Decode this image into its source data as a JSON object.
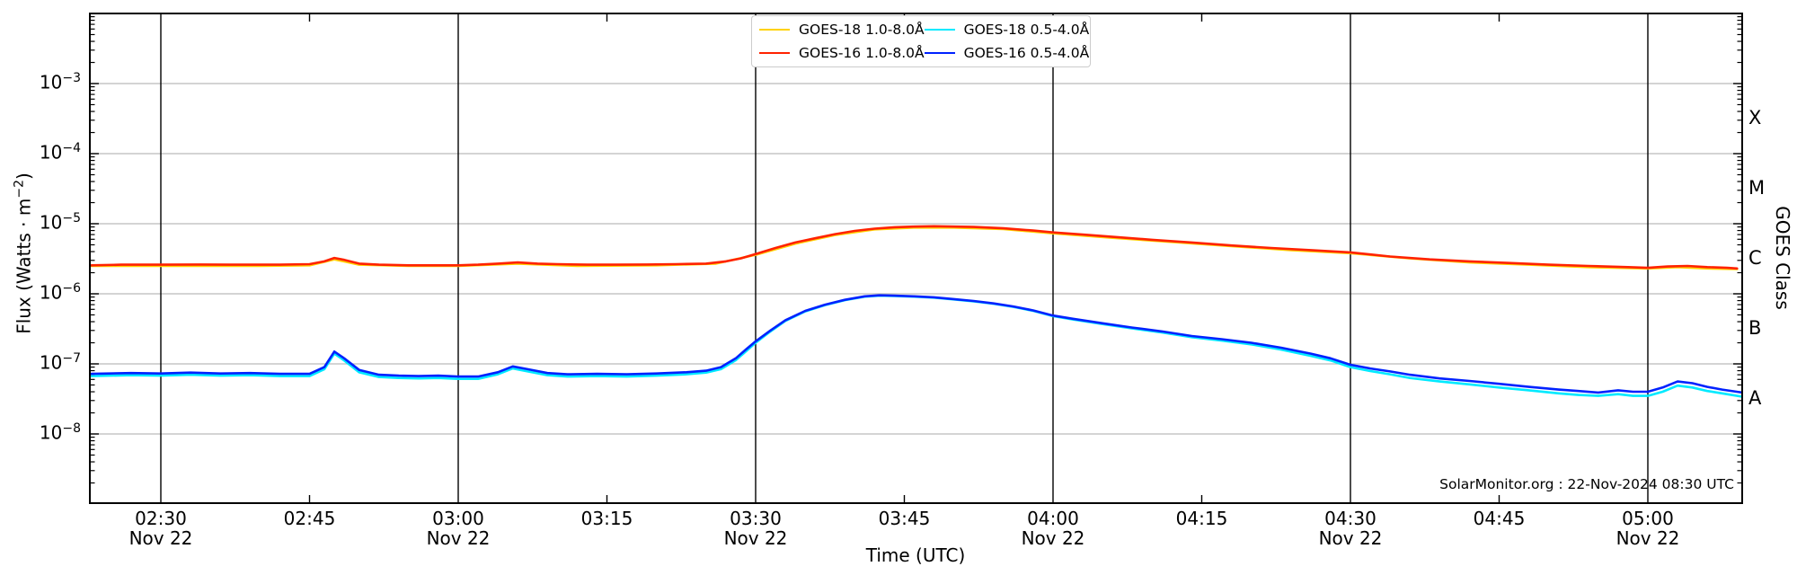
{
  "figure": {
    "footer": "SolarMonitor.org : 22-Nov-2024 08:30 UTC"
  },
  "axes": {
    "x": {
      "title": "Time (UTC)",
      "ticks": [
        {
          "label": "02:30",
          "sub": "Nov 22",
          "t": 150,
          "grid": true
        },
        {
          "label": "02:45",
          "t": 165,
          "grid": false
        },
        {
          "label": "03:00",
          "sub": "Nov 22",
          "t": 180,
          "grid": true
        },
        {
          "label": "03:15",
          "t": 195,
          "grid": false
        },
        {
          "label": "03:30",
          "sub": "Nov 22",
          "t": 210,
          "grid": true
        },
        {
          "label": "03:45",
          "t": 225,
          "grid": false
        },
        {
          "label": "04:00",
          "sub": "Nov 22",
          "t": 240,
          "grid": true
        },
        {
          "label": "04:15",
          "t": 255,
          "grid": false
        },
        {
          "label": "04:30",
          "sub": "Nov 22",
          "t": 270,
          "grid": true
        },
        {
          "label": "04:45",
          "t": 285,
          "grid": false
        },
        {
          "label": "05:00",
          "sub": "Nov 22",
          "t": 300,
          "grid": true
        }
      ]
    },
    "y_left": {
      "title_prefix": "Flux (Watts · m",
      "title_exp": "−2",
      "title_suffix": ")",
      "ticks": [
        {
          "base": "10",
          "exp": "−3",
          "e": -3
        },
        {
          "base": "10",
          "exp": "−4",
          "e": -4
        },
        {
          "base": "10",
          "exp": "−5",
          "e": -5
        },
        {
          "base": "10",
          "exp": "−6",
          "e": -6
        },
        {
          "base": "10",
          "exp": "−7",
          "e": -7
        },
        {
          "base": "10",
          "exp": "−8",
          "e": -8
        }
      ]
    },
    "y_right": {
      "title": "GOES Class",
      "classes": [
        {
          "label": "X",
          "e_mid": -3.5
        },
        {
          "label": "M",
          "e_mid": -4.5
        },
        {
          "label": "C",
          "e_mid": -5.5
        },
        {
          "label": "B",
          "e_mid": -6.5
        },
        {
          "label": "A",
          "e_mid": -7.5
        }
      ]
    }
  },
  "legend": {
    "items": [
      {
        "label": "GOES-18 1.0-8.0Å",
        "color": "#ffd200"
      },
      {
        "label": "GOES-16 1.0-8.0Å",
        "color": "#ff2200"
      },
      {
        "label": "GOES-18 0.5-4.0Å",
        "color": "#00eaff"
      },
      {
        "label": "GOES-16 0.5-4.0Å",
        "color": "#0022ff"
      }
    ]
  },
  "chart_data": {
    "type": "line",
    "title": "",
    "xlabel": "Time (UTC)",
    "ylabel": "Flux (Watts · m^-2)",
    "x_unit": "minutes after 00:00 UTC, 22-Nov-2024",
    "x_range_minutes": [
      142.8,
      309.5
    ],
    "y_scale": "log",
    "y_range": [
      1.1e-09,
      0.01
    ],
    "grid": {
      "x_gridlines_at": [
        "02:30",
        "03:00",
        "03:30",
        "04:00",
        "04:30",
        "05:00"
      ],
      "y_gridlines_at_decades": [
        -3,
        -4,
        -5,
        -6,
        -7,
        -8
      ]
    },
    "legend_position": "top center",
    "series": [
      {
        "name": "GOES-18 1.0-8.0Å",
        "color": "#ffd200",
        "points": [
          [
            143,
            2.5e-06
          ],
          [
            150,
            2.5e-06
          ],
          [
            160,
            2.5e-06
          ],
          [
            165,
            2.55e-06
          ],
          [
            167.5,
            3.1e-06
          ],
          [
            170,
            2.6e-06
          ],
          [
            175,
            2.5e-06
          ],
          [
            180,
            2.5e-06
          ],
          [
            186,
            2.7e-06
          ],
          [
            192,
            2.5e-06
          ],
          [
            200,
            2.55e-06
          ],
          [
            206,
            2.7e-06
          ],
          [
            210,
            3.6e-06
          ],
          [
            214,
            5.2e-06
          ],
          [
            218,
            6.9e-06
          ],
          [
            222,
            8.3e-06
          ],
          [
            226,
            8.8e-06
          ],
          [
            230,
            8.8e-06
          ],
          [
            235,
            8.4e-06
          ],
          [
            240,
            7.3e-06
          ],
          [
            246,
            6.3e-06
          ],
          [
            252,
            5.5e-06
          ],
          [
            258,
            4.8e-06
          ],
          [
            264,
            4.2e-06
          ],
          [
            270,
            3.8e-06
          ],
          [
            276,
            3.2e-06
          ],
          [
            282,
            2.8e-06
          ],
          [
            288,
            2.6e-06
          ],
          [
            294,
            2.4e-06
          ],
          [
            300,
            2.3e-06
          ],
          [
            303,
            2.4e-06
          ],
          [
            306,
            2.3e-06
          ],
          [
            309,
            2.25e-06
          ]
        ]
      },
      {
        "name": "GOES-18 0.5-4.0Å",
        "color": "#00eaff",
        "points": [
          [
            143,
            6.7e-08
          ],
          [
            147,
            6.9e-08
          ],
          [
            150,
            6.8e-08
          ],
          [
            153,
            7e-08
          ],
          [
            156,
            6.8e-08
          ],
          [
            159,
            6.9e-08
          ],
          [
            162,
            6.7e-08
          ],
          [
            165,
            6.7e-08
          ],
          [
            166.5,
            8.4e-08
          ],
          [
            167.5,
            1.4e-07
          ],
          [
            168.5,
            1.12e-07
          ],
          [
            170,
            7.6e-08
          ],
          [
            172,
            6.5e-08
          ],
          [
            174,
            6.3e-08
          ],
          [
            176,
            6.2e-08
          ],
          [
            178,
            6.3e-08
          ],
          [
            180,
            6.1e-08
          ],
          [
            182,
            6.1e-08
          ],
          [
            184,
            7.1e-08
          ],
          [
            185.5,
            8.6e-08
          ],
          [
            187,
            7.8e-08
          ],
          [
            189,
            6.9e-08
          ],
          [
            191,
            6.6e-08
          ],
          [
            194,
            6.7e-08
          ],
          [
            197,
            6.6e-08
          ],
          [
            200,
            6.8e-08
          ],
          [
            203,
            7.1e-08
          ],
          [
            205,
            7.5e-08
          ],
          [
            206.5,
            8.4e-08
          ],
          [
            208,
            1.13e-07
          ],
          [
            209,
            1.5e-07
          ],
          [
            210,
            2e-07
          ],
          [
            211.5,
            2.9e-07
          ],
          [
            213,
            4.1e-07
          ],
          [
            215,
            5.6e-07
          ],
          [
            217,
            6.9e-07
          ],
          [
            219,
            8.1e-07
          ],
          [
            221,
            9.1e-07
          ],
          [
            222.5,
            9.4e-07
          ],
          [
            224,
            9.3e-07
          ],
          [
            226,
            9.1e-07
          ],
          [
            228,
            8.8e-07
          ],
          [
            230,
            8.3e-07
          ],
          [
            232,
            7.8e-07
          ],
          [
            234,
            7.2e-07
          ],
          [
            236,
            6.5e-07
          ],
          [
            238,
            5.7e-07
          ],
          [
            240,
            4.8e-07
          ],
          [
            242,
            4.3e-07
          ],
          [
            245,
            3.7e-07
          ],
          [
            248,
            3.2e-07
          ],
          [
            251,
            2.8e-07
          ],
          [
            254,
            2.4e-07
          ],
          [
            257,
            2.15e-07
          ],
          [
            260,
            1.9e-07
          ],
          [
            263,
            1.6e-07
          ],
          [
            266,
            1.3e-07
          ],
          [
            268,
            1.12e-07
          ],
          [
            270,
            9e-08
          ],
          [
            272,
            7.9e-08
          ],
          [
            274,
            7.1e-08
          ],
          [
            276,
            6.3e-08
          ],
          [
            279,
            5.6e-08
          ],
          [
            282,
            5.1e-08
          ],
          [
            285,
            4.6e-08
          ],
          [
            288,
            4.2e-08
          ],
          [
            291,
            3.8e-08
          ],
          [
            293,
            3.6e-08
          ],
          [
            295,
            3.5e-08
          ],
          [
            297,
            3.7e-08
          ],
          [
            298.5,
            3.5e-08
          ],
          [
            300,
            3.5e-08
          ],
          [
            301.5,
            4e-08
          ],
          [
            303,
            4.9e-08
          ],
          [
            304.5,
            4.6e-08
          ],
          [
            306,
            4.1e-08
          ],
          [
            307.5,
            3.8e-08
          ],
          [
            309.5,
            3.4e-08
          ]
        ]
      },
      {
        "name": "GOES-16 0.5-4.0Å",
        "color": "#0022ff",
        "points": [
          [
            143,
            7.2e-08
          ],
          [
            147,
            7.4e-08
          ],
          [
            150,
            7.3e-08
          ],
          [
            153,
            7.5e-08
          ],
          [
            156,
            7.3e-08
          ],
          [
            159,
            7.4e-08
          ],
          [
            162,
            7.2e-08
          ],
          [
            165,
            7.2e-08
          ],
          [
            166.5,
            9e-08
          ],
          [
            167.5,
            1.5e-07
          ],
          [
            168.5,
            1.2e-07
          ],
          [
            170,
            8.2e-08
          ],
          [
            172,
            7e-08
          ],
          [
            174,
            6.8e-08
          ],
          [
            176,
            6.7e-08
          ],
          [
            178,
            6.8e-08
          ],
          [
            180,
            6.6e-08
          ],
          [
            182,
            6.6e-08
          ],
          [
            184,
            7.6e-08
          ],
          [
            185.5,
            9.2e-08
          ],
          [
            187,
            8.4e-08
          ],
          [
            189,
            7.4e-08
          ],
          [
            191,
            7.1e-08
          ],
          [
            194,
            7.2e-08
          ],
          [
            197,
            7.1e-08
          ],
          [
            200,
            7.3e-08
          ],
          [
            203,
            7.6e-08
          ],
          [
            205,
            8e-08
          ],
          [
            206.5,
            9e-08
          ],
          [
            208,
            1.2e-07
          ],
          [
            209,
            1.6e-07
          ],
          [
            210,
            2.1e-07
          ],
          [
            211.5,
            3e-07
          ],
          [
            213,
            4.2e-07
          ],
          [
            215,
            5.7e-07
          ],
          [
            217,
            7e-07
          ],
          [
            219,
            8.2e-07
          ],
          [
            221,
            9.2e-07
          ],
          [
            222.5,
            9.5e-07
          ],
          [
            224,
            9.4e-07
          ],
          [
            226,
            9.2e-07
          ],
          [
            228,
            8.9e-07
          ],
          [
            230,
            8.4e-07
          ],
          [
            232,
            7.9e-07
          ],
          [
            234,
            7.3e-07
          ],
          [
            236,
            6.6e-07
          ],
          [
            238,
            5.8e-07
          ],
          [
            240,
            4.9e-07
          ],
          [
            242,
            4.4e-07
          ],
          [
            245,
            3.8e-07
          ],
          [
            248,
            3.3e-07
          ],
          [
            251,
            2.9e-07
          ],
          [
            254,
            2.5e-07
          ],
          [
            257,
            2.25e-07
          ],
          [
            260,
            2e-07
          ],
          [
            263,
            1.7e-07
          ],
          [
            266,
            1.4e-07
          ],
          [
            268,
            1.2e-07
          ],
          [
            270,
            9.7e-08
          ],
          [
            272,
            8.6e-08
          ],
          [
            274,
            7.8e-08
          ],
          [
            276,
            7e-08
          ],
          [
            279,
            6.2e-08
          ],
          [
            282,
            5.7e-08
          ],
          [
            285,
            5.2e-08
          ],
          [
            288,
            4.7e-08
          ],
          [
            291,
            4.3e-08
          ],
          [
            293,
            4.1e-08
          ],
          [
            295,
            3.9e-08
          ],
          [
            297,
            4.2e-08
          ],
          [
            298.5,
            4e-08
          ],
          [
            300,
            4e-08
          ],
          [
            301.5,
            4.6e-08
          ],
          [
            303,
            5.6e-08
          ],
          [
            304.5,
            5.3e-08
          ],
          [
            306,
            4.7e-08
          ],
          [
            307.5,
            4.3e-08
          ],
          [
            309.5,
            3.9e-08
          ]
        ]
      },
      {
        "name": "GOES-16 1.0-8.0Å",
        "color": "#ff2200",
        "points": [
          [
            143,
            2.55e-06
          ],
          [
            146,
            2.6e-06
          ],
          [
            150,
            2.6e-06
          ],
          [
            154,
            2.62e-06
          ],
          [
            158,
            2.6e-06
          ],
          [
            162,
            2.6e-06
          ],
          [
            165,
            2.65e-06
          ],
          [
            166.5,
            2.9e-06
          ],
          [
            167.5,
            3.25e-06
          ],
          [
            168.5,
            3.05e-06
          ],
          [
            170,
            2.7e-06
          ],
          [
            172,
            2.6e-06
          ],
          [
            175,
            2.55e-06
          ],
          [
            178,
            2.55e-06
          ],
          [
            180,
            2.55e-06
          ],
          [
            182,
            2.6e-06
          ],
          [
            184,
            2.7e-06
          ],
          [
            186,
            2.8e-06
          ],
          [
            188,
            2.7e-06
          ],
          [
            190,
            2.65e-06
          ],
          [
            193,
            2.6e-06
          ],
          [
            196,
            2.6e-06
          ],
          [
            199,
            2.62e-06
          ],
          [
            202,
            2.65e-06
          ],
          [
            205,
            2.7e-06
          ],
          [
            207,
            2.9e-06
          ],
          [
            208.5,
            3.2e-06
          ],
          [
            210,
            3.7e-06
          ],
          [
            212,
            4.5e-06
          ],
          [
            214,
            5.4e-06
          ],
          [
            216,
            6.2e-06
          ],
          [
            218,
            7.1e-06
          ],
          [
            220,
            7.9e-06
          ],
          [
            222,
            8.5e-06
          ],
          [
            224,
            8.9e-06
          ],
          [
            226,
            9.1e-06
          ],
          [
            228,
            9.2e-06
          ],
          [
            230,
            9.1e-06
          ],
          [
            232,
            9e-06
          ],
          [
            235,
            8.6e-06
          ],
          [
            238,
            8e-06
          ],
          [
            240,
            7.5e-06
          ],
          [
            243,
            7e-06
          ],
          [
            246,
            6.5e-06
          ],
          [
            250,
            5.9e-06
          ],
          [
            254,
            5.4e-06
          ],
          [
            258,
            4.9e-06
          ],
          [
            262,
            4.5e-06
          ],
          [
            266,
            4.2e-06
          ],
          [
            270,
            3.9e-06
          ],
          [
            274,
            3.4e-06
          ],
          [
            278,
            3.1e-06
          ],
          [
            282,
            2.9e-06
          ],
          [
            286,
            2.75e-06
          ],
          [
            290,
            2.6e-06
          ],
          [
            294,
            2.5e-06
          ],
          [
            298,
            2.4e-06
          ],
          [
            300,
            2.35e-06
          ],
          [
            302,
            2.45e-06
          ],
          [
            304,
            2.5e-06
          ],
          [
            306,
            2.4e-06
          ],
          [
            308,
            2.35e-06
          ],
          [
            309,
            2.3e-06
          ]
        ]
      }
    ]
  }
}
